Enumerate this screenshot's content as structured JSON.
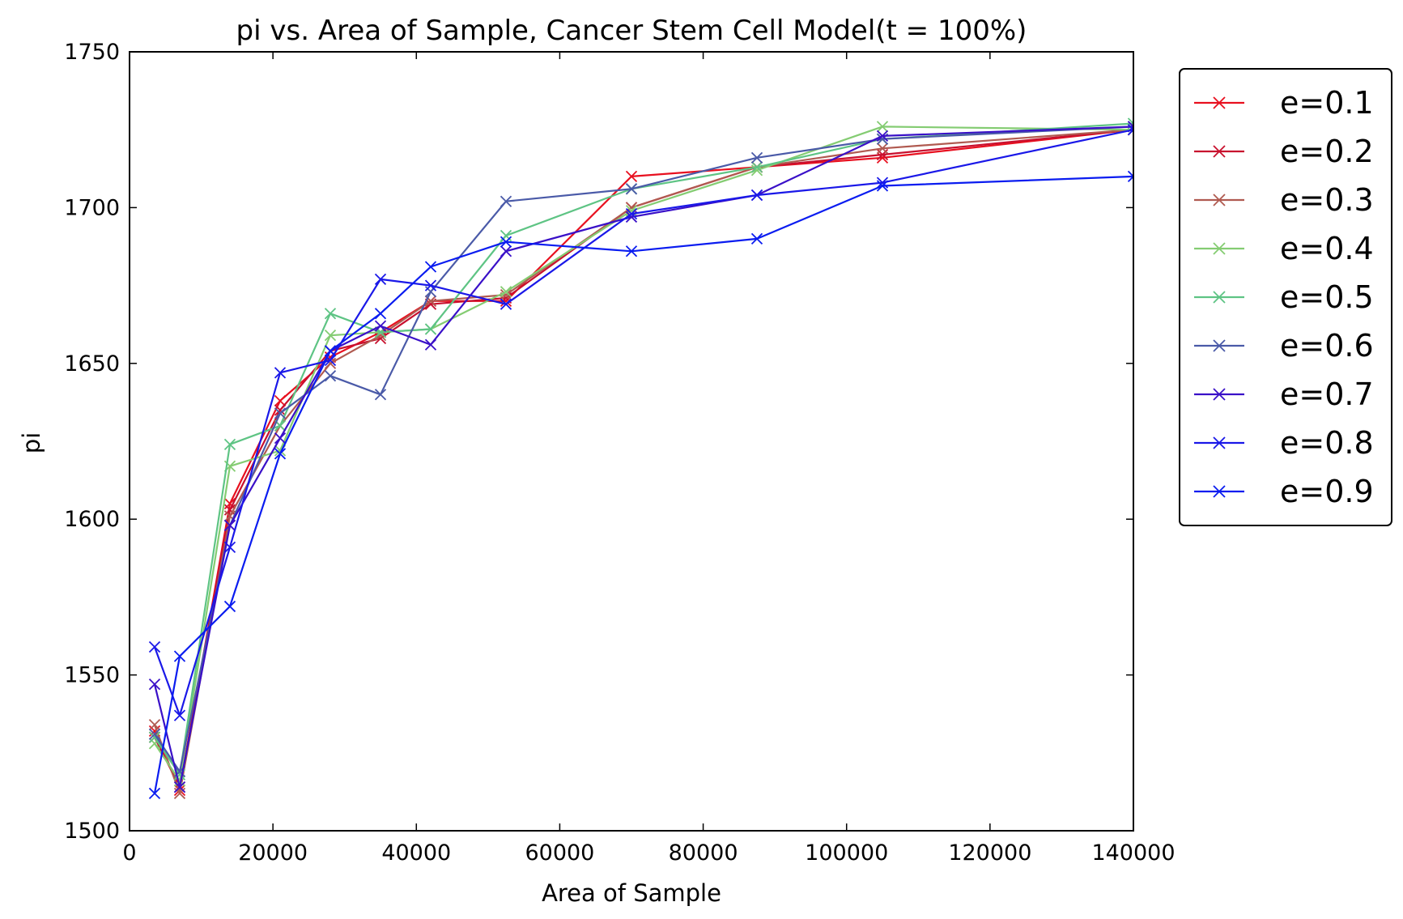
{
  "chart_data": {
    "type": "line",
    "title": "pi vs. Area of Sample, Cancer Stem Cell Model(t = 100%)",
    "xlabel": "Area of Sample",
    "ylabel": "pi",
    "xlim": [
      0,
      140000
    ],
    "ylim": [
      1500,
      1750
    ],
    "xticks": [
      0,
      20000,
      40000,
      60000,
      80000,
      100000,
      120000,
      140000
    ],
    "yticks": [
      1500,
      1550,
      1600,
      1650,
      1700,
      1750
    ],
    "xtick_labels": [
      "0",
      "20000",
      "40000",
      "60000",
      "80000",
      "100000",
      "120000",
      "140000"
    ],
    "ytick_labels": [
      "1500",
      "1550",
      "1600",
      "1650",
      "1700",
      "1750"
    ],
    "marker": "x",
    "grid": false,
    "legend_position": "outside-right-top",
    "x": [
      3500,
      7000,
      14000,
      21000,
      28000,
      35000,
      42000,
      52500,
      70000,
      87500,
      105000,
      140000
    ],
    "series": [
      {
        "name": "e=0.1",
        "color": "#e8101f",
        "values": [
          1532,
          1513,
          1605,
          1638,
          1652,
          1660,
          1670,
          1670,
          1710,
          1713,
          1716,
          1725
        ]
      },
      {
        "name": "e=0.2",
        "color": "#c8102e",
        "values": [
          1530,
          1514,
          1603,
          1635,
          1654,
          1658,
          1669,
          1671,
          1700,
          1713,
          1717,
          1725
        ]
      },
      {
        "name": "e=0.3",
        "color": "#b05a50",
        "values": [
          1534,
          1512,
          1601,
          1630,
          1650,
          1659,
          1670,
          1672,
          1700,
          1713,
          1719,
          1725
        ]
      },
      {
        "name": "e=0.4",
        "color": "#84cc72",
        "values": [
          1528,
          1516,
          1617,
          1622,
          1659,
          1660,
          1661,
          1673,
          1699,
          1712,
          1726,
          1725
        ]
      },
      {
        "name": "e=0.5",
        "color": "#5ec484",
        "values": [
          1530,
          1518,
          1624,
          1630,
          1666,
          1660,
          1661,
          1691,
          1706,
          1713,
          1722,
          1727
        ]
      },
      {
        "name": "e=0.6",
        "color": "#4a5aa8",
        "values": [
          1531,
          1519,
          1598,
          1634,
          1646,
          1640,
          1673,
          1702,
          1706,
          1716,
          1722,
          1726
        ]
      },
      {
        "name": "e=0.7",
        "color": "#3a10c8",
        "values": [
          1547,
          1514,
          1598,
          1626,
          1654,
          1662,
          1656,
          1686,
          1697,
          1704,
          1723,
          1726
        ]
      },
      {
        "name": "e=0.8",
        "color": "#1a18e8",
        "values": [
          1559,
          1537,
          1591,
          1647,
          1651,
          1677,
          1675,
          1669,
          1698,
          1704,
          1708,
          1725
        ]
      },
      {
        "name": "e=0.9",
        "color": "#0a1cf0",
        "values": [
          1512,
          1556,
          1572,
          1621,
          1654,
          1666,
          1681,
          1689,
          1686,
          1690,
          1707,
          1710
        ]
      }
    ]
  }
}
